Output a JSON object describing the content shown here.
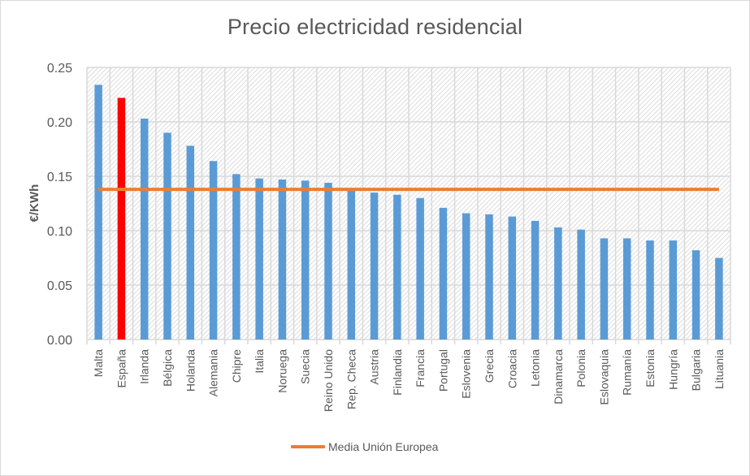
{
  "chart_data": {
    "type": "bar",
    "title": "Precio electricidad residencial",
    "xlabel": "",
    "ylabel": "€/KWh",
    "ylim": [
      0,
      0.25
    ],
    "yticks": [
      "0.00",
      "0.05",
      "0.10",
      "0.15",
      "0.20",
      "0.25"
    ],
    "ytick_values": [
      0,
      0.05,
      0.1,
      0.15,
      0.2,
      0.25
    ],
    "grid": true,
    "categories": [
      "Malta",
      "España",
      "Irlanda",
      "Bélgica",
      "Holanda",
      "Alemania",
      "Chipre",
      "Italia",
      "Noruega",
      "Suecia",
      "Reino Unido",
      "Rep. Checa",
      "Austria",
      "Finlandia",
      "Francia",
      "Portugal",
      "Eslovenia",
      "Grecia",
      "Croacia",
      "Letonia",
      "Dinamarca",
      "Polonia",
      "Eslovaquia",
      "Rumanía",
      "Estonia",
      "Hungría",
      "Bulgaria",
      "Lituania"
    ],
    "values": [
      0.234,
      0.222,
      0.203,
      0.19,
      0.178,
      0.164,
      0.152,
      0.148,
      0.147,
      0.146,
      0.144,
      0.138,
      0.135,
      0.133,
      0.13,
      0.121,
      0.116,
      0.115,
      0.113,
      0.109,
      0.103,
      0.101,
      0.093,
      0.093,
      0.091,
      0.091,
      0.082,
      0.075
    ],
    "highlight_category": "España",
    "bar_color": "#5b9bd5",
    "highlight_color": "#ff0000",
    "reference_line": {
      "name": "Media Unión Europea",
      "value": 0.138,
      "color": "#ed7d31"
    },
    "legend": {
      "position": "bottom",
      "entries": [
        "Media Unión Europea"
      ]
    }
  }
}
